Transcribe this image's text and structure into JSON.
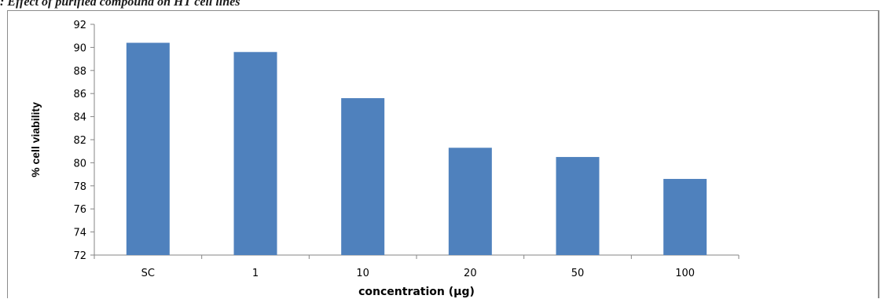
{
  "caption": ": Effect of purified compound on HT cell lines",
  "chart_data": {
    "type": "bar",
    "categories": [
      "SC",
      "1",
      "10",
      "20",
      "50",
      "100"
    ],
    "values": [
      90.4,
      89.6,
      85.6,
      81.3,
      80.5,
      78.6
    ],
    "xlabel": "concentration (µg)",
    "ylabel": "% cell viability",
    "ylim": [
      72,
      92
    ],
    "yticks": [
      72,
      74,
      76,
      78,
      80,
      82,
      84,
      86,
      88,
      90,
      92
    ],
    "bar_color": "#4f81bd",
    "grid": false,
    "legend": "none"
  }
}
